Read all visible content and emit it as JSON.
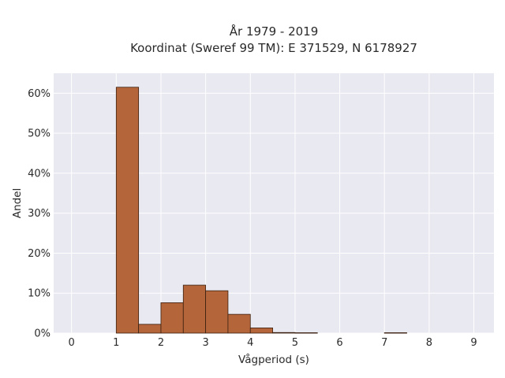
{
  "chart_data": {
    "type": "bar",
    "title_line1": "År 1979 - 2019",
    "title_line2": "Koordinat (Sweref 99 TM): E 371529, N 6178927",
    "xlabel": "Vågperiod (s)",
    "ylabel": "Andel",
    "xlim": [
      -0.4,
      9.45
    ],
    "ylim": [
      0,
      65
    ],
    "xticks": [
      0,
      1,
      2,
      3,
      4,
      5,
      6,
      7,
      8,
      9
    ],
    "yticks": [
      0,
      10,
      20,
      30,
      40,
      50,
      60
    ],
    "ytick_labels": [
      "0%",
      "10%",
      "20%",
      "30%",
      "40%",
      "50%",
      "60%"
    ],
    "bin_width": 0.5,
    "bins": [
      {
        "start": 1.0,
        "value": 61.5
      },
      {
        "start": 1.5,
        "value": 2.2
      },
      {
        "start": 2.0,
        "value": 7.6
      },
      {
        "start": 2.5,
        "value": 12.0
      },
      {
        "start": 3.0,
        "value": 10.6
      },
      {
        "start": 3.5,
        "value": 4.7
      },
      {
        "start": 4.0,
        "value": 1.3
      },
      {
        "start": 4.5,
        "value": 0.15
      },
      {
        "start": 5.0,
        "value": 0.1
      },
      {
        "start": 7.0,
        "value": 0.1
      }
    ],
    "grid": true,
    "colors": {
      "bar_fill": "#b5653a",
      "bar_stroke": "#3b2010",
      "plot_bg": "#e9e9f1",
      "grid": "#ffffff"
    }
  }
}
